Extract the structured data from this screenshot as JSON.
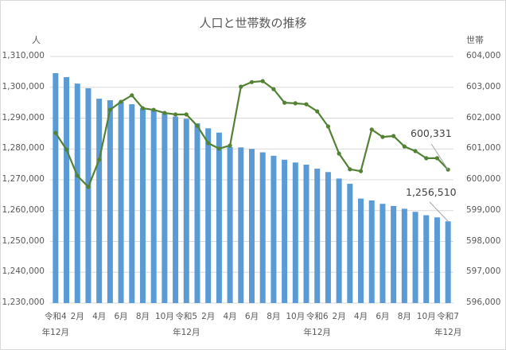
{
  "chart_data": {
    "type": "bar+line",
    "title": "人口と世帯数の推移",
    "y_left_label": "人",
    "y_right_label": "世帯",
    "y_left_range": [
      1230000,
      1310000
    ],
    "y_right_range": [
      596000,
      604000
    ],
    "y_left_ticks": [
      "1,310,000",
      "1,300,000",
      "1,290,000",
      "1,280,000",
      "1,270,000",
      "1,260,000",
      "1,250,000",
      "1,240,000",
      "1,230,000"
    ],
    "y_right_ticks": [
      "604,000",
      "603,000",
      "602,000",
      "601,000",
      "600,000",
      "599,000",
      "598,000",
      "597,000",
      "596,000"
    ],
    "grid": true,
    "legend": "none",
    "x_tick_labels": [
      {
        "index": 0,
        "line1": "令和4",
        "line2": "年12月"
      },
      {
        "index": 2,
        "line1": "2月",
        "line2": ""
      },
      {
        "index": 4,
        "line1": "4月",
        "line2": ""
      },
      {
        "index": 6,
        "line1": "6月",
        "line2": ""
      },
      {
        "index": 8,
        "line1": "8月",
        "line2": ""
      },
      {
        "index": 10,
        "line1": "10月",
        "line2": ""
      },
      {
        "index": 12,
        "line1": "令和5",
        "line2": "年12月"
      },
      {
        "index": 14,
        "line1": "2月",
        "line2": ""
      },
      {
        "index": 16,
        "line1": "4月",
        "line2": ""
      },
      {
        "index": 18,
        "line1": "6月",
        "line2": ""
      },
      {
        "index": 20,
        "line1": "8月",
        "line2": ""
      },
      {
        "index": 22,
        "line1": "10月",
        "line2": ""
      },
      {
        "index": 24,
        "line1": "令和6",
        "line2": "年12月"
      },
      {
        "index": 26,
        "line1": "2月",
        "line2": ""
      },
      {
        "index": 28,
        "line1": "4月",
        "line2": ""
      },
      {
        "index": 30,
        "line1": "6月",
        "line2": ""
      },
      {
        "index": 32,
        "line1": "8月",
        "line2": ""
      },
      {
        "index": 34,
        "line1": "10月",
        "line2": ""
      },
      {
        "index": 36,
        "line1": "令和7",
        "line2": "年12月"
      }
    ],
    "series": [
      {
        "name": "人口",
        "type": "bar",
        "axis": "left",
        "color": "#5b9bd5",
        "values": [
          1304600,
          1303300,
          1301200,
          1299700,
          1296300,
          1295800,
          1295300,
          1294500,
          1293200,
          1292500,
          1291500,
          1290500,
          1289800,
          1288300,
          1286700,
          1285300,
          1280600,
          1280500,
          1280000,
          1278900,
          1277800,
          1276500,
          1275600,
          1274900,
          1273600,
          1272500,
          1270400,
          1268700,
          1263900,
          1263300,
          1262200,
          1261500,
          1260600,
          1259600,
          1258500,
          1257800,
          1256510
        ]
      },
      {
        "name": "世帯",
        "type": "line",
        "axis": "right",
        "color": "#548235",
        "values": [
          601520,
          600980,
          600130,
          599770,
          600650,
          602270,
          602530,
          602740,
          602320,
          602270,
          602170,
          602120,
          602120,
          601750,
          601190,
          601010,
          601110,
          603020,
          603170,
          603200,
          602940,
          602500,
          602480,
          602450,
          602220,
          601730,
          600850,
          600340,
          600280,
          601630,
          601390,
          601420,
          601080,
          600930,
          600700,
          600700,
          600331
        ]
      }
    ],
    "annotations": [
      {
        "series": "世帯",
        "index": 36,
        "text": "600,331"
      },
      {
        "series": "人口",
        "index": 36,
        "text": "1,256,510"
      }
    ]
  }
}
